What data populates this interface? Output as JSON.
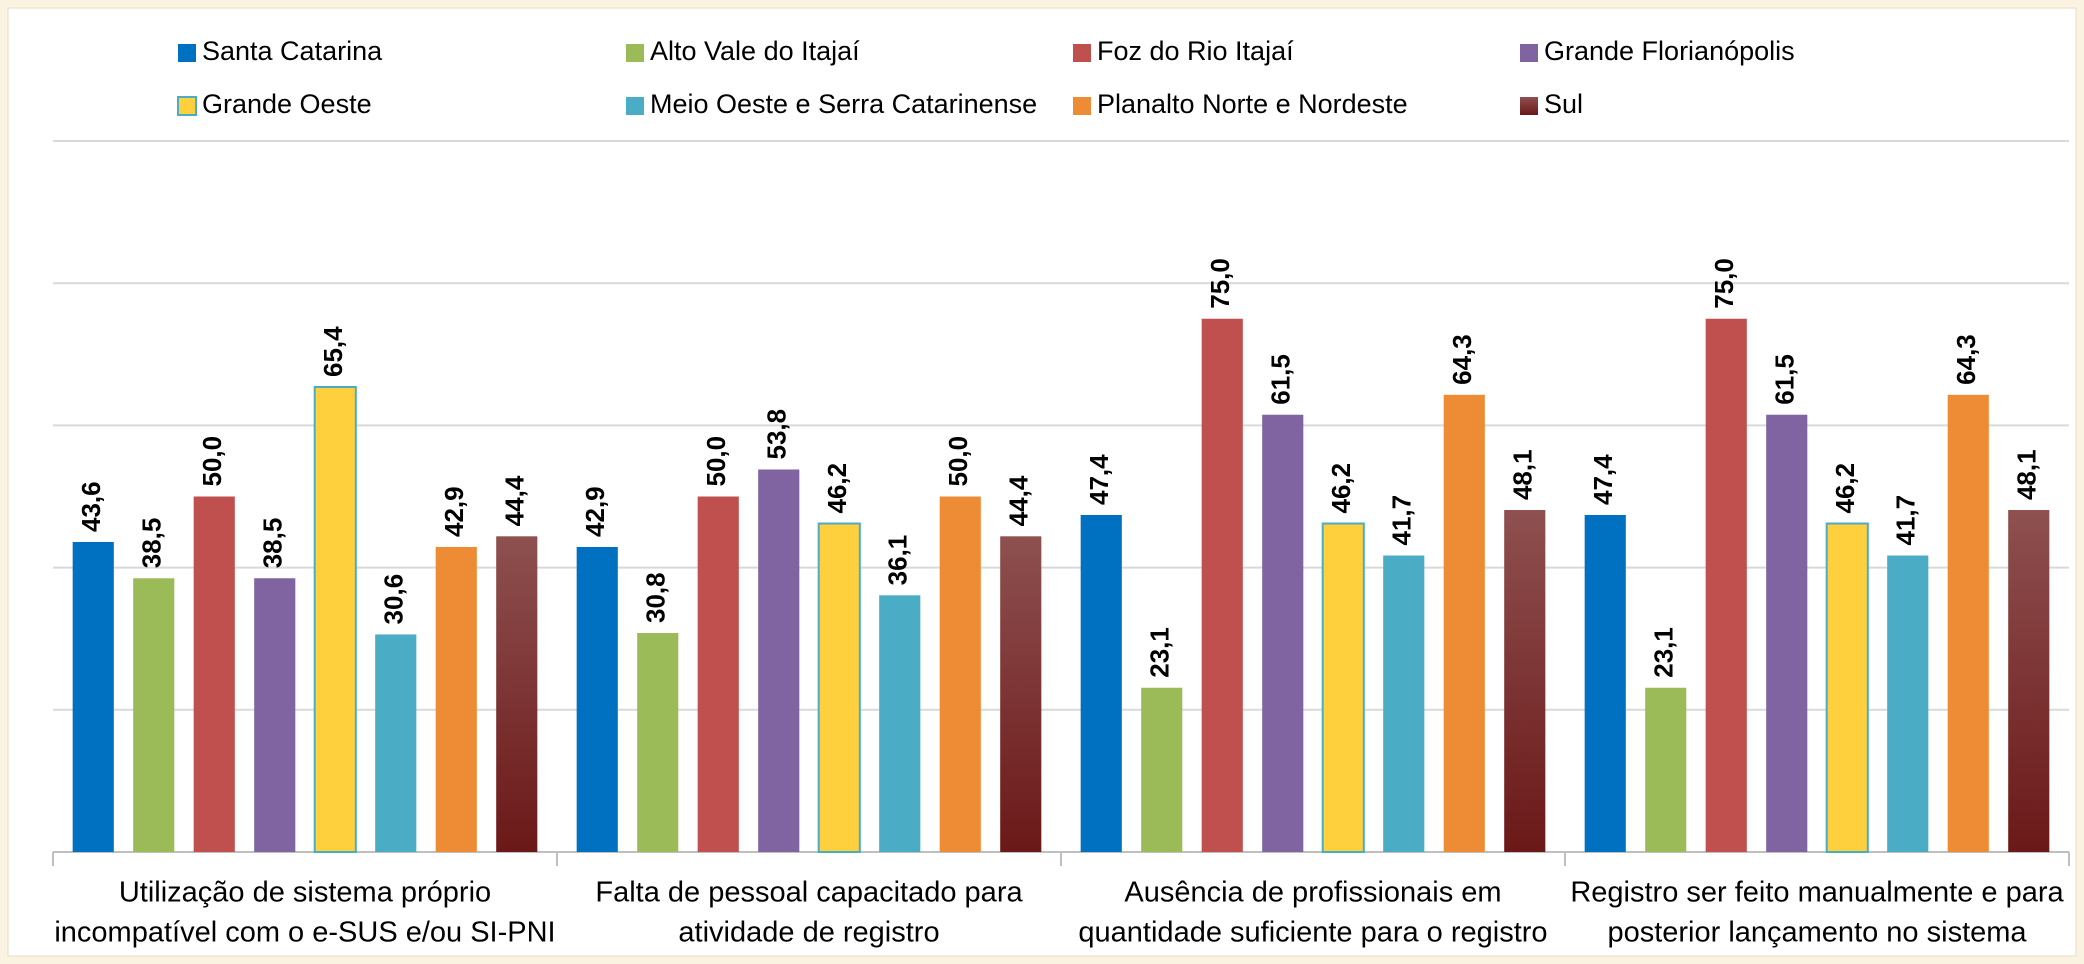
{
  "chart_data": {
    "type": "bar",
    "categories": [
      [
        "Utilização de sistema próprio",
        "incompatível com o e-SUS e/ou SI-PNI"
      ],
      [
        "Falta de pessoal capacitado para",
        "atividade de registro"
      ],
      [
        "Ausência de profissionais em",
        "quantidade suficiente para o registro"
      ],
      [
        "Registro ser feito manualmente e para",
        "posterior lançamento no sistema"
      ]
    ],
    "series": [
      {
        "name": "Santa Catarina",
        "color": "#0070C0",
        "values": [
          43.6,
          42.9,
          47.4,
          47.4
        ],
        "value_labels": [
          "43,6",
          "42,9",
          "47,4",
          "47,4"
        ]
      },
      {
        "name": "Alto Vale do Itajaí",
        "color": "#9BBB59",
        "values": [
          38.5,
          30.8,
          23.1,
          23.1
        ],
        "value_labels": [
          "38,5",
          "30,8",
          "23,1",
          "23,1"
        ]
      },
      {
        "name": "Foz do Rio Itajaí",
        "color": "#C0504D",
        "values": [
          50.0,
          50.0,
          75.0,
          75.0
        ],
        "value_labels": [
          "50,0",
          "50,0",
          "75,0",
          "75,0"
        ]
      },
      {
        "name": "Grande Florianópolis",
        "color": "#8064A2",
        "values": [
          38.5,
          53.8,
          61.5,
          61.5
        ],
        "value_labels": [
          "38,5",
          "53,8",
          "61,5",
          "61,5"
        ]
      },
      {
        "name": "Grande Oeste",
        "color": "#FFD03E",
        "edgecolor": "#4BACC6",
        "values": [
          65.4,
          46.2,
          46.2,
          46.2
        ],
        "value_labels": [
          "65,4",
          "46,2",
          "46,2",
          "46,2"
        ]
      },
      {
        "name": "Meio Oeste e Serra Catarinense",
        "color": "#4BACC6",
        "values": [
          30.6,
          36.1,
          41.7,
          41.7
        ],
        "value_labels": [
          "30,6",
          "36,1",
          "41,7",
          "41,7"
        ]
      },
      {
        "name": "Planalto Norte e Nordeste",
        "color": "#ED8C34",
        "values": [
          42.9,
          50.0,
          64.3,
          64.3
        ],
        "value_labels": [
          "42,9",
          "50,0",
          "64,3",
          "64,3"
        ]
      },
      {
        "name": "Sul",
        "color": "#8E5050",
        "color2": "#6B1818",
        "values": [
          44.4,
          44.4,
          48.1,
          48.1
        ],
        "value_labels": [
          "44,4",
          "44,4",
          "48,1",
          "48,1"
        ]
      }
    ],
    "ylim": [
      0,
      100
    ],
    "yticks": [
      0,
      20,
      40,
      60,
      80,
      100
    ],
    "grid": true,
    "legend": "top"
  }
}
